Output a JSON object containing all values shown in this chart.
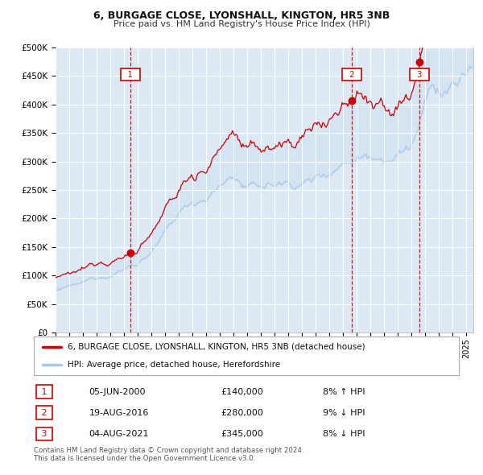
{
  "title1": "6, BURGAGE CLOSE, LYONSHALL, KINGTON, HR5 3NB",
  "title2": "Price paid vs. HM Land Registry's House Price Index (HPI)",
  "property_label": "6, BURGAGE CLOSE, LYONSHALL, KINGTON, HR5 3NB (detached house)",
  "hpi_label": "HPI: Average price, detached house, Herefordshire",
  "sale_dates": [
    "05-JUN-2000",
    "19-AUG-2016",
    "04-AUG-2021"
  ],
  "sale_prices": [
    140000,
    280000,
    345000
  ],
  "sale_hpi_pct": [
    "8% ↑ HPI",
    "9% ↓ HPI",
    "8% ↓ HPI"
  ],
  "vline_years": [
    2000.44,
    2016.63,
    2021.59
  ],
  "copyright_text": "Contains HM Land Registry data © Crown copyright and database right 2024.\nThis data is licensed under the Open Government Licence v3.0.",
  "bg_color": "#dce9f5",
  "grid_color": "#ffffff",
  "property_line_color": "#cc0000",
  "hpi_line_color": "#a8c8e8",
  "vline_color": "#cc0000",
  "dot_color": "#cc0000",
  "ylim": [
    0,
    500000
  ],
  "yticks": [
    0,
    50000,
    100000,
    150000,
    200000,
    250000,
    300000,
    350000,
    400000,
    450000,
    500000
  ],
  "xstart": 1995.0,
  "xend": 2025.5,
  "seed": 12345
}
